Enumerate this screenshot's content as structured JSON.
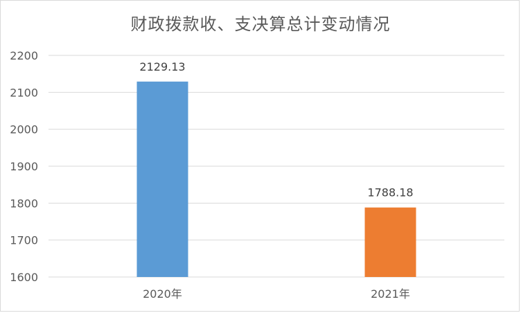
{
  "chart_data": {
    "type": "bar",
    "title": "财政拨款收、支决算总计变动情况",
    "categories": [
      "2020年",
      "2021年"
    ],
    "values": [
      2129.13,
      1788.18
    ],
    "data_labels": [
      "2129.13",
      "1788.18"
    ],
    "bar_colors": [
      "#5b9bd5",
      "#ed7d31"
    ],
    "xlabel": "",
    "ylabel": "",
    "ylim": [
      1600,
      2200
    ],
    "yticks": [
      1600,
      1700,
      1800,
      1900,
      2000,
      2100,
      2200
    ],
    "grid": true,
    "legend": "none"
  },
  "colors": {
    "grid": "#d9d9d9",
    "text": "#595959",
    "data_label": "#404040"
  }
}
